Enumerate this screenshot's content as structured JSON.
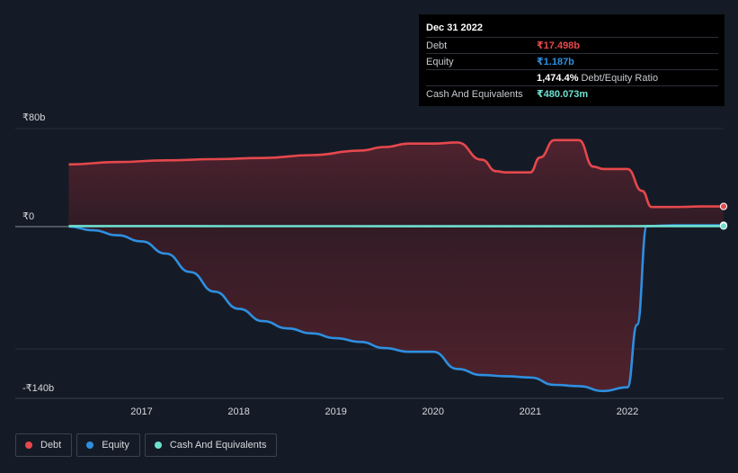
{
  "chart_data": {
    "type": "area",
    "currency": "₹",
    "y_ticks": [
      {
        "value": 80,
        "label": "₹80b"
      },
      {
        "value": 0,
        "label": "₹0"
      },
      {
        "value": -140,
        "label": "-₹140b"
      }
    ],
    "x_ticks": [
      {
        "value": 2017,
        "label": "2017"
      },
      {
        "value": 2018,
        "label": "2018"
      },
      {
        "value": 2019,
        "label": "2019"
      },
      {
        "value": 2020,
        "label": "2020"
      },
      {
        "value": 2021,
        "label": "2021"
      },
      {
        "value": 2022,
        "label": "2022"
      }
    ],
    "x_range": [
      2015.7,
      2022.99
    ],
    "y_range": [
      -140,
      85
    ],
    "series": [
      {
        "name": "Debt",
        "color": "#e5484d",
        "points": [
          [
            2016.25,
            54
          ],
          [
            2016.75,
            56
          ],
          [
            2017.25,
            57.5
          ],
          [
            2017.75,
            58.5
          ],
          [
            2018.25,
            59.5
          ],
          [
            2018.75,
            62
          ],
          [
            2019.25,
            66
          ],
          [
            2019.5,
            69
          ],
          [
            2019.75,
            72
          ],
          [
            2020.0,
            72
          ],
          [
            2020.25,
            73
          ],
          [
            2020.5,
            58
          ],
          [
            2020.65,
            48
          ],
          [
            2020.75,
            47
          ],
          [
            2021.0,
            47
          ],
          [
            2021.1,
            60
          ],
          [
            2021.25,
            75
          ],
          [
            2021.5,
            75
          ],
          [
            2021.65,
            52
          ],
          [
            2021.75,
            50
          ],
          [
            2022.0,
            50
          ],
          [
            2022.15,
            31
          ],
          [
            2022.25,
            17
          ],
          [
            2022.5,
            17
          ],
          [
            2022.75,
            17.5
          ],
          [
            2022.99,
            17.5
          ]
        ]
      },
      {
        "name": "Equity",
        "color": "#2e8fe0",
        "points": [
          [
            2016.25,
            0
          ],
          [
            2016.5,
            -3
          ],
          [
            2016.75,
            -7
          ],
          [
            2017.0,
            -12
          ],
          [
            2017.25,
            -22
          ],
          [
            2017.5,
            -37
          ],
          [
            2017.75,
            -53
          ],
          [
            2018.0,
            -67
          ],
          [
            2018.25,
            -77
          ],
          [
            2018.5,
            -83
          ],
          [
            2018.75,
            -87
          ],
          [
            2019.0,
            -91
          ],
          [
            2019.25,
            -94
          ],
          [
            2019.5,
            -99
          ],
          [
            2019.75,
            -102
          ],
          [
            2020.0,
            -102
          ],
          [
            2020.25,
            -116
          ],
          [
            2020.5,
            -121
          ],
          [
            2020.75,
            -122
          ],
          [
            2021.0,
            -123
          ],
          [
            2021.25,
            -129
          ],
          [
            2021.5,
            -130
          ],
          [
            2021.75,
            -134
          ],
          [
            2022.0,
            -131
          ],
          [
            2022.1,
            -80
          ],
          [
            2022.2,
            0.5
          ],
          [
            2022.5,
            1.2
          ],
          [
            2022.99,
            1.2
          ]
        ]
      },
      {
        "name": "Cash And Equivalents",
        "color": "#6ee0cf",
        "points": [
          [
            2016.25,
            0.5
          ],
          [
            2017.0,
            0.5
          ],
          [
            2018.0,
            0.4
          ],
          [
            2019.0,
            0.4
          ],
          [
            2020.0,
            0.3
          ],
          [
            2021.0,
            0.3
          ],
          [
            2022.0,
            0.4
          ],
          [
            2022.5,
            0.5
          ],
          [
            2022.99,
            0.48
          ]
        ]
      }
    ],
    "tooltip": {
      "date": "Dec 31 2022",
      "rows": [
        {
          "label": "Debt",
          "value": "₹17.498b",
          "color": "#e5484d"
        },
        {
          "label": "Equity",
          "value": "₹1.187b",
          "color": "#2e8fe0"
        },
        {
          "label": "",
          "value": "1,474.4%",
          "sub": "Debt/Equity Ratio",
          "color": "#ffffff"
        },
        {
          "label": "Cash And Equivalents",
          "value": "₹480.073m",
          "color": "#6ee0cf"
        }
      ]
    },
    "legend": [
      {
        "label": "Debt",
        "color": "#e5484d"
      },
      {
        "label": "Equity",
        "color": "#2e8fe0"
      },
      {
        "label": "Cash And Equivalents",
        "color": "#6ee0cf"
      }
    ]
  }
}
